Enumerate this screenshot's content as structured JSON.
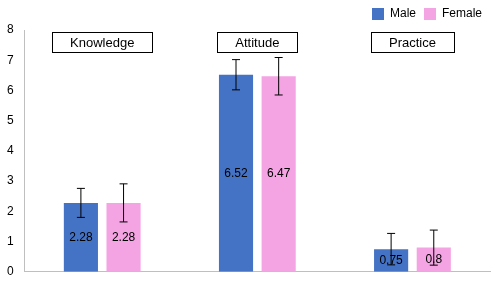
{
  "chart_data": {
    "type": "bar",
    "categories": [
      "Knowledge",
      "Attitude",
      "Practice"
    ],
    "series": [
      {
        "name": "Male",
        "color": "#4472c4",
        "values": [
          2.28,
          6.52,
          0.75
        ],
        "errors": [
          0.48,
          0.5,
          0.52
        ]
      },
      {
        "name": "Female",
        "color": "#f4a3e3",
        "values": [
          2.28,
          6.47,
          0.8
        ],
        "errors": [
          0.63,
          0.62,
          0.58
        ]
      }
    ],
    "ylim": [
      0,
      8
    ],
    "yticks": [
      0,
      1,
      2,
      3,
      4,
      5,
      6,
      7,
      8
    ],
    "grid": false,
    "legend": "top-right",
    "data_labels": true,
    "tick_labels": "y"
  }
}
